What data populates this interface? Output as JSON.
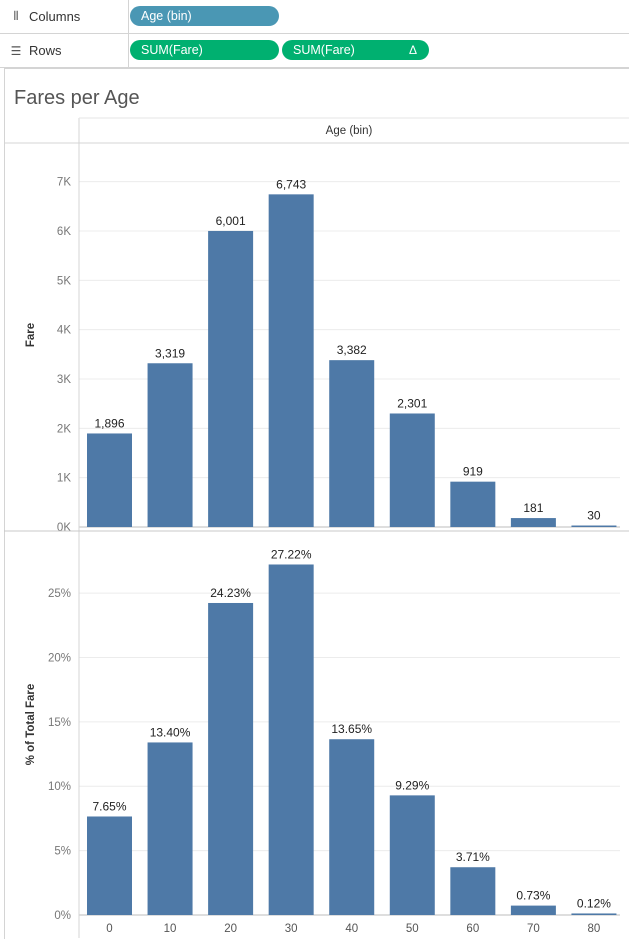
{
  "shelves": {
    "columns": {
      "label": "Columns",
      "icon": "columns-icon",
      "pills": [
        {
          "text": "Age (bin)",
          "color": "#4a97b4"
        }
      ]
    },
    "rows": {
      "label": "Rows",
      "icon": "rows-icon",
      "pills": [
        {
          "text": "SUM(Fare)",
          "color": "#00b070"
        },
        {
          "text": "SUM(Fare)",
          "color": "#00b070",
          "badge": "Δ"
        }
      ]
    }
  },
  "sheet": {
    "title": "Fares per Age"
  },
  "chart_data": [
    {
      "type": "bar",
      "title": "Fares per Age",
      "column_header": "Age (bin)",
      "xlabel": "",
      "ylabel": "Fare",
      "categories": [
        "0",
        "10",
        "20",
        "30",
        "40",
        "50",
        "60",
        "70",
        "80"
      ],
      "values": [
        1896,
        3319,
        6001,
        6743,
        3382,
        2301,
        919,
        181,
        30
      ],
      "value_labels": [
        "1,896",
        "3,319",
        "6,001",
        "6,743",
        "3,382",
        "2,301",
        "919",
        "181",
        "30"
      ],
      "ylim": [
        0,
        7500
      ],
      "yticks": [
        0,
        1000,
        2000,
        3000,
        4000,
        5000,
        6000,
        7000
      ],
      "ytick_labels": [
        "0K",
        "1K",
        "2K",
        "3K",
        "4K",
        "5K",
        "6K",
        "7K"
      ],
      "bar_color": "#4e79a7",
      "grid": true
    },
    {
      "type": "bar",
      "xlabel": "",
      "ylabel": "% of Total Fare",
      "categories": [
        "0",
        "10",
        "20",
        "30",
        "40",
        "50",
        "60",
        "70",
        "80"
      ],
      "values": [
        7.65,
        13.4,
        24.23,
        27.22,
        13.65,
        9.29,
        3.71,
        0.73,
        0.12
      ],
      "value_labels": [
        "7.65%",
        "13.40%",
        "24.23%",
        "27.22%",
        "13.65%",
        "9.29%",
        "3.71%",
        "0.73%",
        "0.12%"
      ],
      "ylim": [
        0,
        28.5
      ],
      "yticks": [
        0,
        5,
        10,
        15,
        20,
        25
      ],
      "ytick_labels": [
        "0%",
        "5%",
        "10%",
        "15%",
        "20%",
        "25%"
      ],
      "bar_color": "#4e79a7",
      "grid": true
    }
  ]
}
